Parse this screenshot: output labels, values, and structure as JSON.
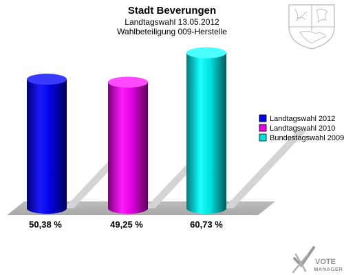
{
  "chart_data": {
    "type": "bar",
    "title": "Stadt Beverungen",
    "subtitle_lines": [
      "Landtagswahl 13.05.2012",
      "Wahlbeteiligung 009-Herstelle"
    ],
    "categories": [
      "Landtagswahl 2012",
      "Landtagswahl 2010",
      "Bundestagswahl 2009"
    ],
    "values": [
      50.38,
      49.25,
      60.73
    ],
    "value_labels": [
      "50,38 %",
      "49,25 %",
      "60,73 %"
    ],
    "colors": [
      "#0000e0",
      "#e000e0",
      "#00e0e0"
    ],
    "ylim": [
      0,
      62
    ],
    "grid": false,
    "legend_position": "right",
    "xlabel": "",
    "ylabel": ""
  },
  "logo": {
    "word1": "VOTE",
    "word2": "MANAGER"
  },
  "emblem_icon": "coat-of-arms-icon"
}
